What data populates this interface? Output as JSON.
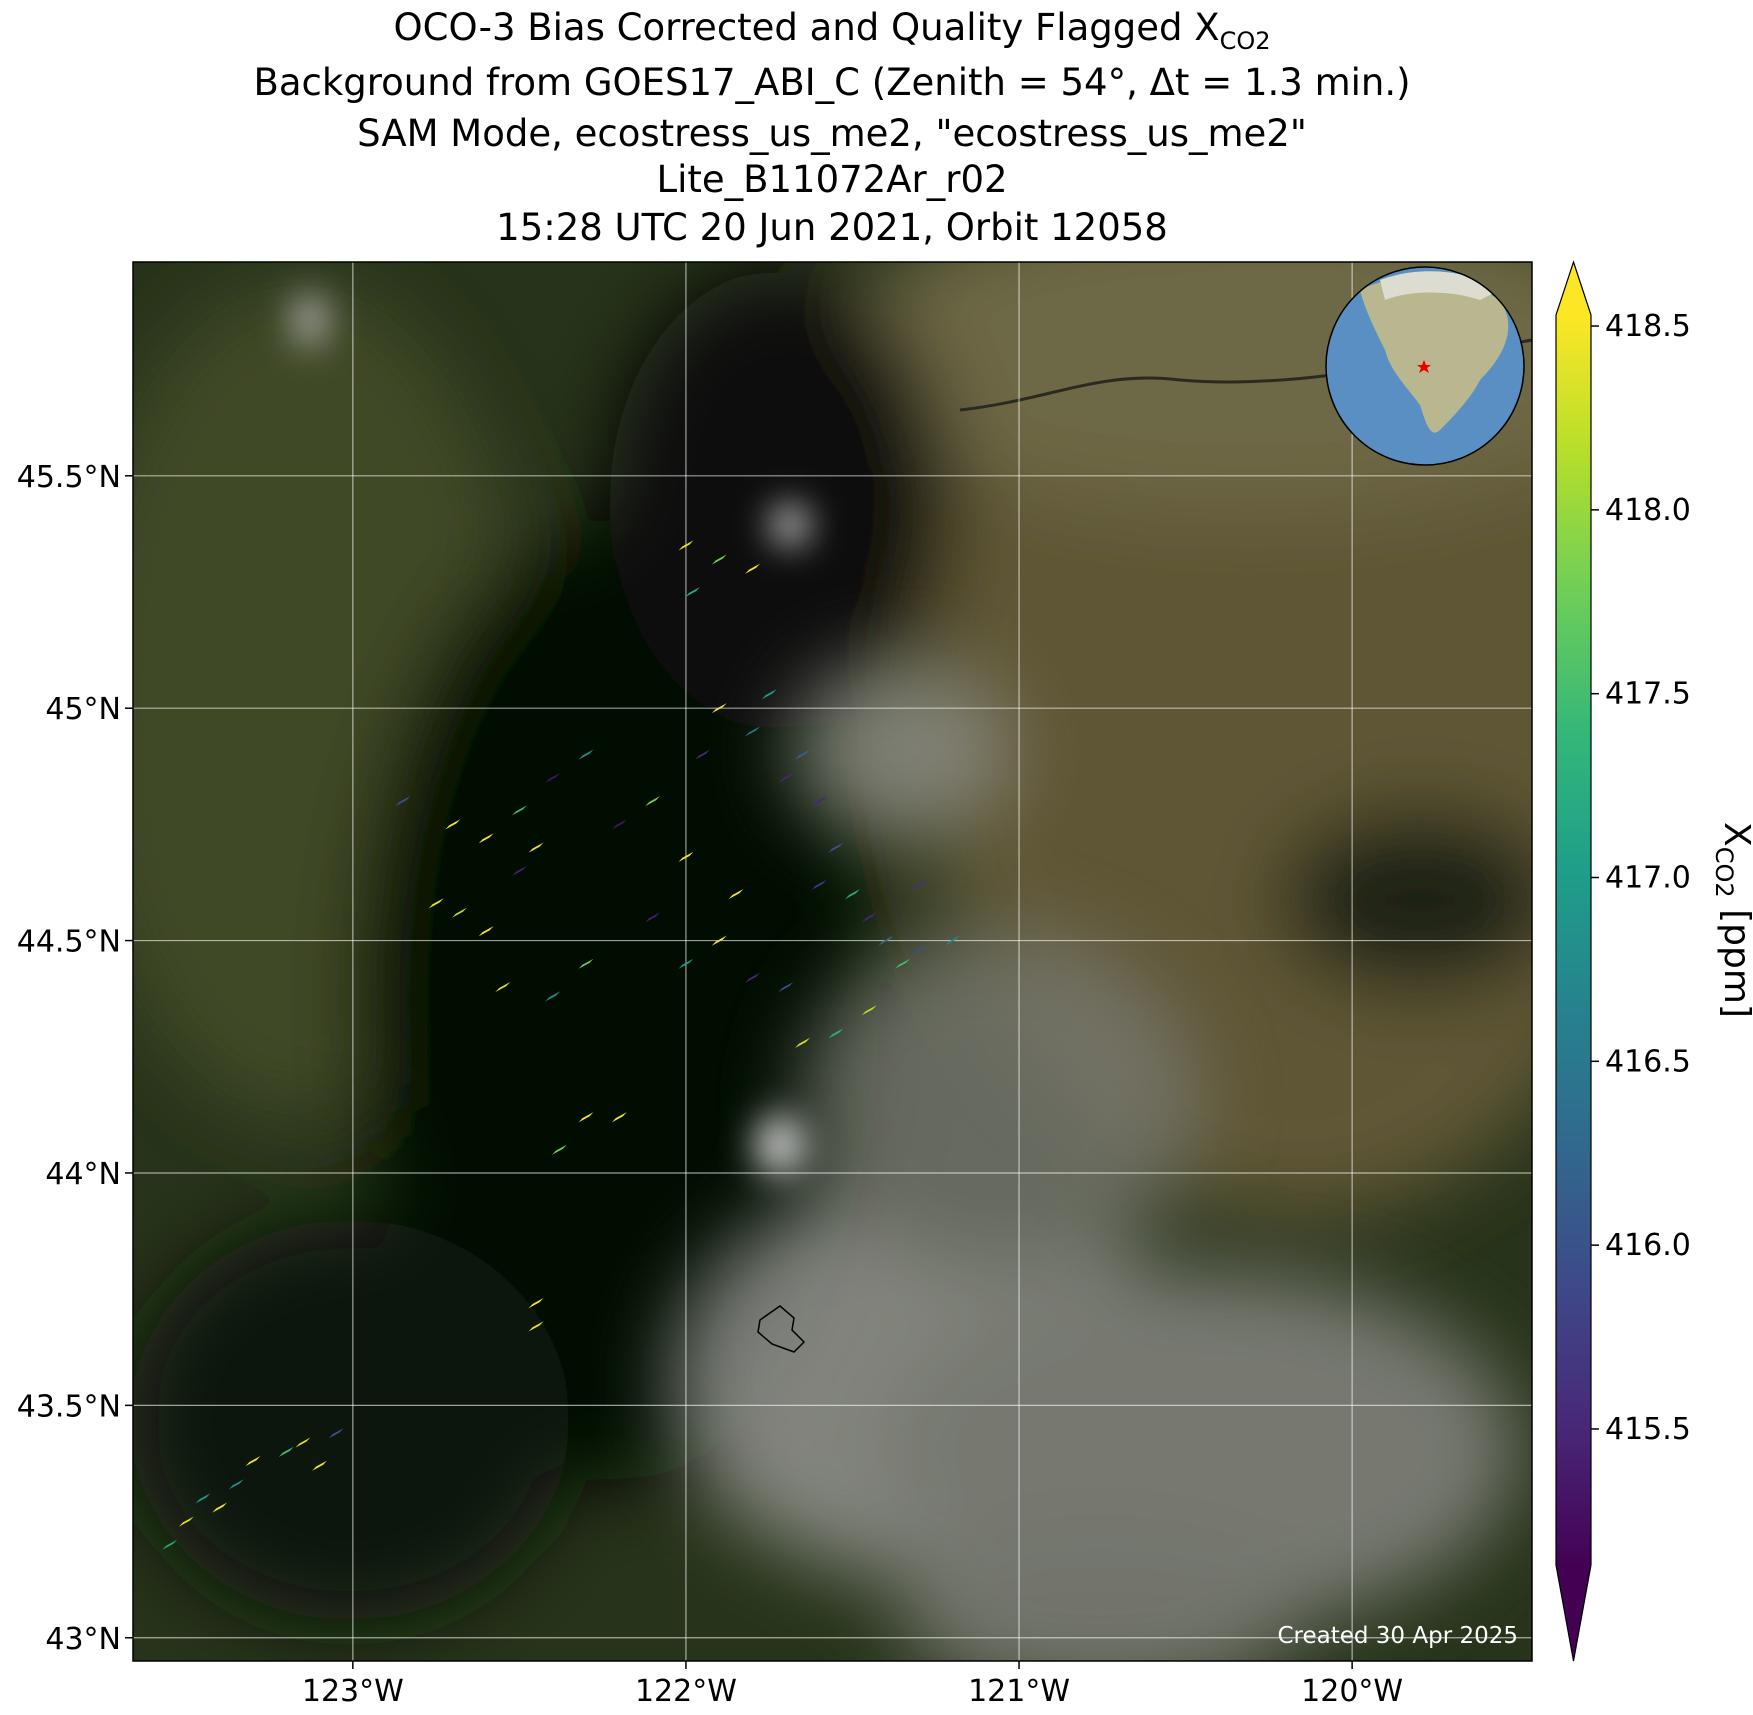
{
  "chart_data": {
    "type": "map",
    "title": [
      "OCO-3 Bias Corrected and Quality Flagged X",
      "Background from GOES17_ABI_C (Zenith = 54°, Δt =  1.3 min.)",
      "SAM Mode, ecostress_us_me2, \"ecostress_us_me2\"",
      "Lite_B11072Ar_r02",
      "15:28 UTC 20 Jun 2021, Orbit 12058"
    ],
    "title_subscript": "CO2",
    "annotation": "Created 30 Apr 2025",
    "colormap": "viridis",
    "grid": true,
    "xlim": [
      -123.66,
      -119.46
    ],
    "ylim": [
      42.95,
      45.96
    ],
    "xticks": [
      {
        "value": -123,
        "label": "123°W"
      },
      {
        "value": -122,
        "label": "122°W"
      },
      {
        "value": -121,
        "label": "121°W"
      },
      {
        "value": -120,
        "label": "120°W"
      }
    ],
    "yticks": [
      {
        "value": 43,
        "label": "43°N"
      },
      {
        "value": 43.5,
        "label": "43.5°N"
      },
      {
        "value": 44,
        "label": "44°N"
      },
      {
        "value": 44.5,
        "label": "44.5°N"
      },
      {
        "value": 45,
        "label": "45°N"
      },
      {
        "value": 45.5,
        "label": "45.5°N"
      }
    ],
    "colorbar": {
      "label": "X",
      "label_subscript": "CO2",
      "label_unit": " [ppm]",
      "lim": [
        415.13,
        418.53
      ],
      "ticks": [
        415.5,
        {
          "value": 416,
          "label": "416.0"
        },
        416.5,
        {
          "value": 417,
          "label": "417.0"
        },
        417.5,
        {
          "value": 418,
          "label": "418.0"
        },
        418.5
      ]
    },
    "x": [
      -123.5,
      -123.45,
      -123.4,
      -123.35,
      -123.3,
      -123.2,
      -123.15,
      -123.05,
      -123.55,
      -123.1,
      -122.75,
      -122.68,
      -122.6,
      -122.55,
      -122.85,
      -122.7,
      -122.6,
      -122.5,
      -122.45,
      -122.4,
      -122.3,
      -122.2,
      -122.1,
      -122.0,
      -121.95,
      -121.9,
      -121.8,
      -121.75,
      -121.7,
      -121.65,
      -121.6,
      -121.55,
      -121.5,
      -121.45,
      -121.4,
      -121.35,
      -121.3,
      -121.2,
      -121.45,
      -121.55,
      -121.65,
      -121.7,
      -121.8,
      -121.9,
      -122.0,
      -122.1,
      -122.3,
      -122.4,
      -122.5,
      -121.85,
      -121.6,
      -121.3,
      -122.0,
      -121.9,
      -121.8,
      -121.98,
      -122.3,
      -122.2,
      -122.38,
      -122.45,
      -122.45
    ],
    "y": [
      43.25,
      43.3,
      43.28,
      43.33,
      43.38,
      43.4,
      43.42,
      43.44,
      43.2,
      43.37,
      44.58,
      44.56,
      44.52,
      44.4,
      44.8,
      44.75,
      44.72,
      44.78,
      44.7,
      44.85,
      44.9,
      44.75,
      44.8,
      44.68,
      44.9,
      45.0,
      44.95,
      45.03,
      44.85,
      44.9,
      44.8,
      44.7,
      44.6,
      44.55,
      44.5,
      44.45,
      44.48,
      44.5,
      44.35,
      44.3,
      44.28,
      44.4,
      44.42,
      44.5,
      44.45,
      44.55,
      44.45,
      44.38,
      44.65,
      44.6,
      44.62,
      44.62,
      45.35,
      45.32,
      45.3,
      45.25,
      44.12,
      44.12,
      44.05,
      43.72,
      43.67
    ],
    "values": [
      418.4,
      417.0,
      418.5,
      416.8,
      418.5,
      417.5,
      418.4,
      416.0,
      417.2,
      418.5,
      418.5,
      418.2,
      418.5,
      418.4,
      416.0,
      418.5,
      418.5,
      417.5,
      418.4,
      415.3,
      416.8,
      415.3,
      417.8,
      418.5,
      415.5,
      418.5,
      416.5,
      417.0,
      415.5,
      416.2,
      415.5,
      416.0,
      417.2,
      415.5,
      416.3,
      417.5,
      416.0,
      416.7,
      418.2,
      417.3,
      418.3,
      416.0,
      415.5,
      418.5,
      417.0,
      415.4,
      417.8,
      416.8,
      415.4,
      418.5,
      415.7,
      415.6,
      418.4,
      417.8,
      418.5,
      417.2,
      418.5,
      418.5,
      417.8,
      418.5,
      418.4
    ]
  }
}
